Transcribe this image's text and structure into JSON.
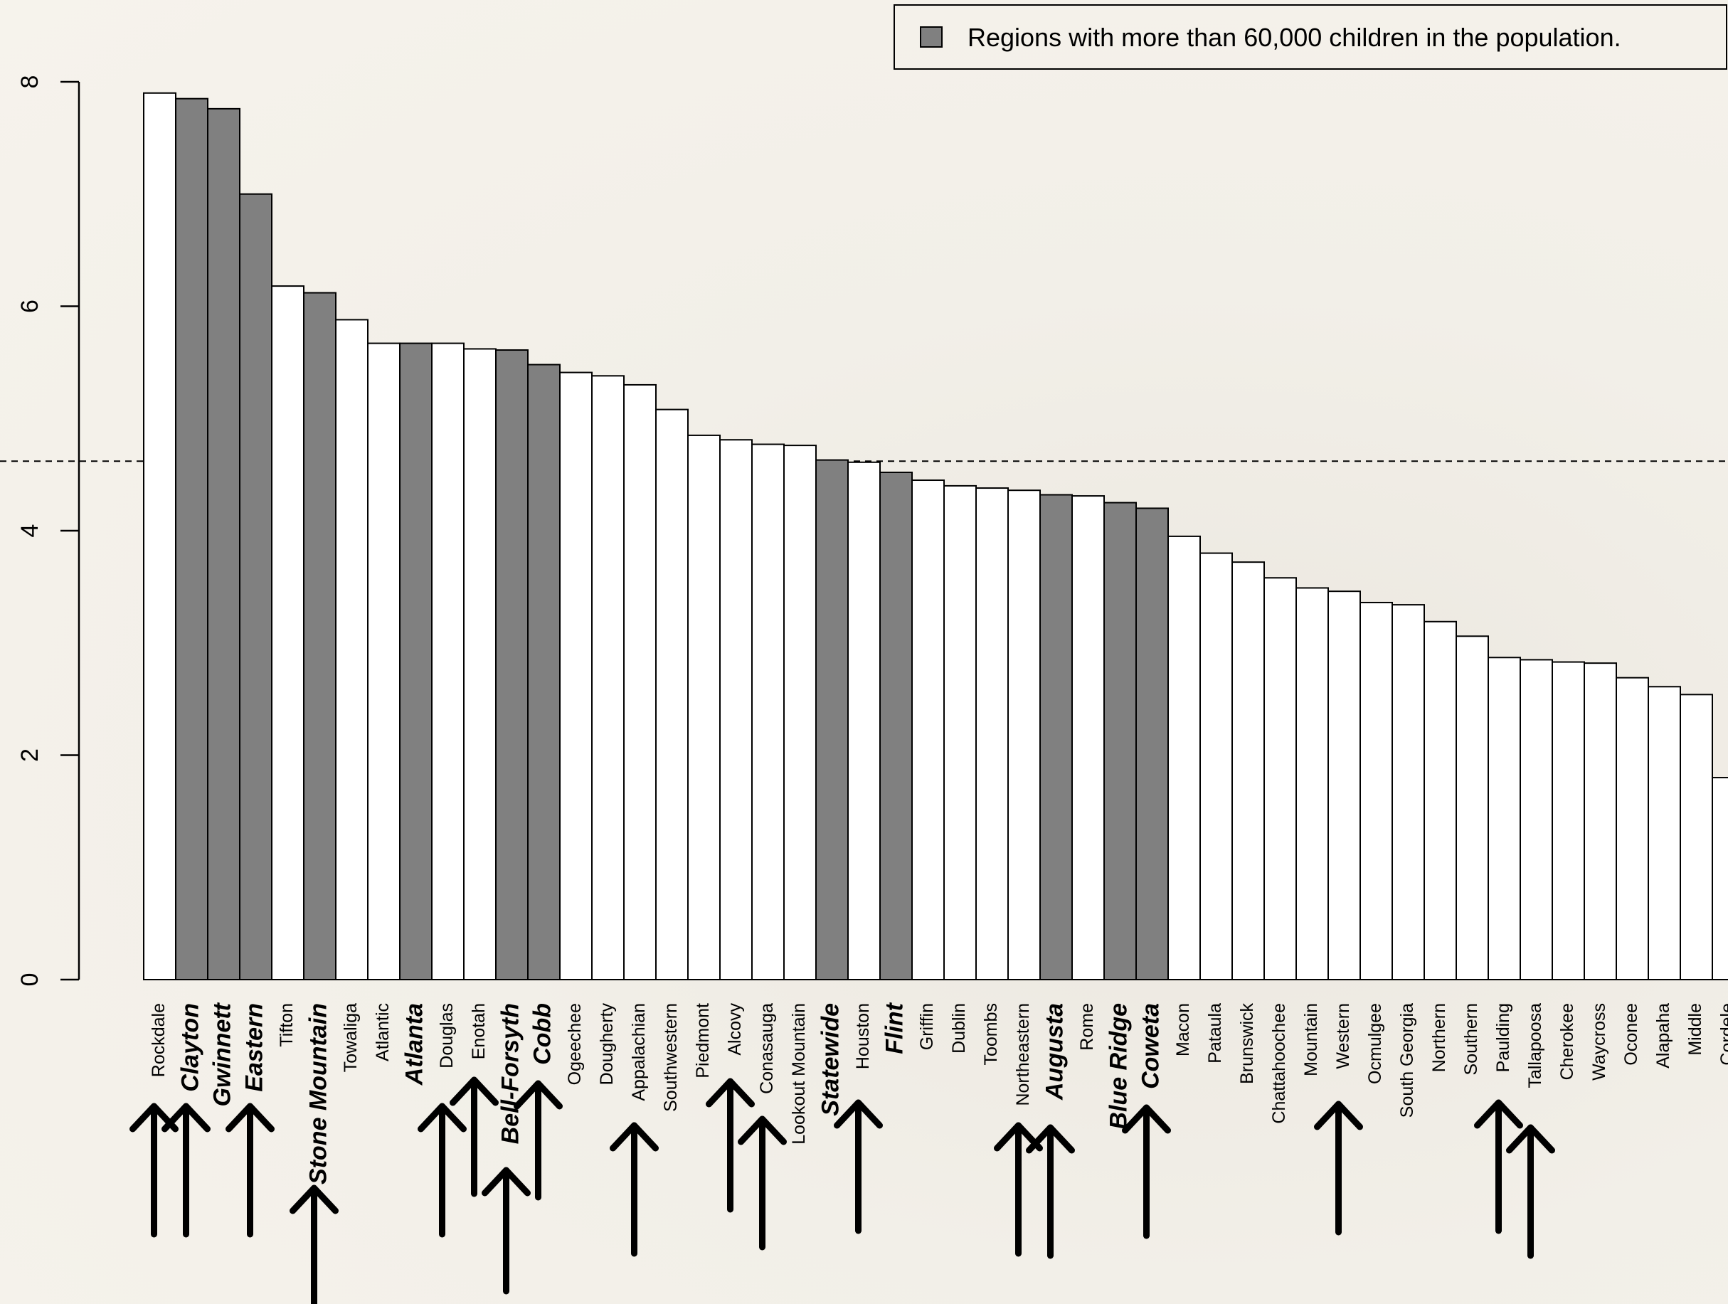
{
  "chart_data": {
    "type": "bar",
    "title": "",
    "xlabel": "",
    "ylabel": "",
    "ylim": [
      0,
      8
    ],
    "yticks": [
      0,
      2,
      4,
      6,
      8
    ],
    "reference_line": 4.62,
    "legend": {
      "label": "Regions with more than 60,000 children in the population.",
      "color": "#808080",
      "placement": "top-right"
    },
    "colors": {
      "highlight": "#808080",
      "normal": "#ffffff"
    },
    "categories": [
      "Rockdale",
      "Clayton",
      "Gwinnett",
      "Eastern",
      "Tifton",
      "Stone Mountain",
      "Towaliga",
      "Atlantic",
      "Atlanta",
      "Douglas",
      "Enotah",
      "Bell-Forsyth",
      "Cobb",
      "Ogeechee",
      "Dougherty",
      "Appalachian",
      "Southwestern",
      "Piedmont",
      "Alcovy",
      "Conasauga",
      "Lookout Mountain",
      "Statewide",
      "Houston",
      "Flint",
      "Griffin",
      "Dublin",
      "Toombs",
      "Northeastern",
      "Augusta",
      "Rome",
      "Blue Ridge",
      "Coweta",
      "Macon",
      "Pataula",
      "Brunswick",
      "Chattahoochee",
      "Mountain",
      "Western",
      "Ocmulgee",
      "South Georgia",
      "Northern",
      "Southern",
      "Paulding",
      "Tallapoosa",
      "Cherokee",
      "Waycross",
      "Oconee",
      "Alapaha",
      "Middle",
      "Cordele"
    ],
    "values": [
      7.9,
      7.85,
      7.76,
      7.0,
      6.18,
      6.12,
      5.88,
      5.67,
      5.67,
      5.67,
      5.62,
      5.61,
      5.48,
      5.41,
      5.38,
      5.3,
      5.08,
      4.85,
      4.81,
      4.77,
      4.76,
      4.63,
      4.61,
      4.52,
      4.45,
      4.4,
      4.38,
      4.36,
      4.32,
      4.31,
      4.25,
      4.2,
      3.95,
      3.8,
      3.72,
      3.58,
      3.49,
      3.46,
      3.36,
      3.34,
      3.19,
      3.06,
      2.87,
      2.85,
      2.83,
      2.82,
      2.69,
      2.61,
      2.54,
      1.8
    ],
    "highlighted": [
      false,
      true,
      true,
      true,
      false,
      true,
      false,
      false,
      true,
      false,
      false,
      true,
      true,
      false,
      false,
      false,
      false,
      false,
      false,
      false,
      false,
      true,
      false,
      true,
      false,
      false,
      false,
      false,
      true,
      false,
      true,
      true,
      false,
      false,
      false,
      false,
      false,
      false,
      false,
      false,
      false,
      false,
      false,
      false,
      false,
      false,
      false,
      false,
      false,
      false
    ],
    "arrow_marked": [
      "Rockdale",
      "Clayton",
      "Eastern",
      "Stone Mountain",
      "Douglas",
      "Enotah",
      "Bell-Forsyth",
      "Cobb",
      "Appalachian",
      "Alcovy",
      "Conasauga",
      "Houston",
      "Northeastern",
      "Augusta",
      "Coweta",
      "Western",
      "Paulding",
      "Tallapoosa"
    ]
  }
}
